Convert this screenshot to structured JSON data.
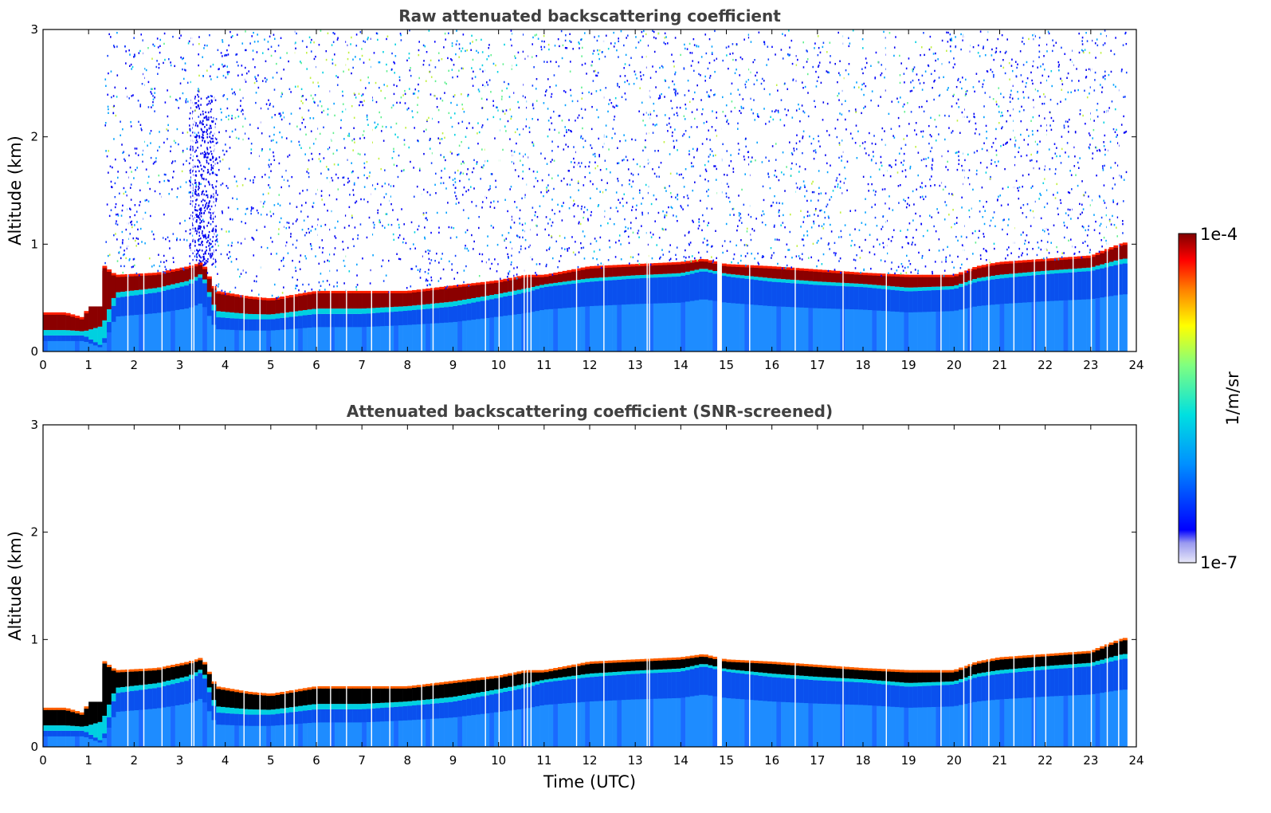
{
  "chart_data": [
    {
      "type": "heatmap",
      "title": "Raw attenuated backscattering coefficient",
      "xlabel": "",
      "ylabel": "Altitude (km)",
      "xlim": [
        0,
        24
      ],
      "ylim": [
        0,
        3
      ],
      "xticks": [
        "0",
        "1",
        "2",
        "3",
        "4",
        "5",
        "6",
        "7",
        "8",
        "9",
        "10",
        "11",
        "12",
        "13",
        "14",
        "15",
        "16",
        "17",
        "18",
        "19",
        "20",
        "21",
        "22",
        "23",
        "24"
      ],
      "yticks": [
        "0",
        "1",
        "2",
        "3"
      ],
      "layer_top_km": {
        "x": [
          0,
          0.5,
          0.9,
          1.3,
          1.6,
          2.5,
          3.2,
          3.5,
          3.8,
          4.5,
          5,
          6,
          7,
          8,
          9,
          10,
          10.6,
          11,
          12,
          13,
          14,
          14.5,
          15,
          16,
          17,
          18,
          19,
          20,
          20.5,
          21,
          22,
          23,
          23.7
        ],
        "y": [
          0.35,
          0.35,
          0.3,
          0.8,
          0.7,
          0.72,
          0.78,
          0.82,
          0.55,
          0.5,
          0.48,
          0.55,
          0.55,
          0.55,
          0.6,
          0.65,
          0.7,
          0.7,
          0.78,
          0.8,
          0.82,
          0.85,
          0.8,
          0.78,
          0.75,
          0.72,
          0.7,
          0.7,
          0.78,
          0.82,
          0.85,
          0.88,
          1.0
        ]
      },
      "layer_bottom_km": {
        "x": [
          0,
          0.5,
          0.9,
          1.3,
          1.6,
          2.5,
          3.2,
          3.5,
          3.8,
          4.5,
          5,
          6,
          7,
          8,
          9,
          10,
          10.6,
          11,
          12,
          13,
          14,
          14.5,
          15,
          16,
          17,
          18,
          19,
          20,
          20.5,
          21,
          22,
          23,
          23.7
        ],
        "y": [
          0.15,
          0.15,
          0.15,
          0.05,
          0.5,
          0.55,
          0.62,
          0.7,
          0.32,
          0.3,
          0.3,
          0.35,
          0.35,
          0.38,
          0.42,
          0.5,
          0.55,
          0.6,
          0.65,
          0.68,
          0.7,
          0.75,
          0.7,
          0.65,
          0.62,
          0.6,
          0.56,
          0.58,
          0.65,
          0.68,
          0.72,
          0.75,
          0.82
        ]
      },
      "colorbar": {
        "min_label": "1e-7",
        "max_label": "1e-4",
        "label": "1/m/sr"
      }
    },
    {
      "type": "heatmap",
      "title": "Attenuated backscattering coefficient (SNR-screened)",
      "xlabel": "Time (UTC)",
      "ylabel": "Altitude (km)",
      "xlim": [
        0,
        24
      ],
      "ylim": [
        0,
        3
      ],
      "xticks": [
        "0",
        "1",
        "2",
        "3",
        "4",
        "5",
        "6",
        "7",
        "8",
        "9",
        "10",
        "11",
        "12",
        "13",
        "14",
        "15",
        "16",
        "17",
        "18",
        "19",
        "20",
        "21",
        "22",
        "23",
        "24"
      ],
      "yticks": [
        "0",
        "1",
        "2",
        "3"
      ],
      "masked_above_layer": true
    }
  ],
  "colors": {
    "jet_stops": [
      "#e8e8f8",
      "#0000ff",
      "#00a0ff",
      "#00e0e0",
      "#80ff80",
      "#ffff00",
      "#ff8000",
      "#ff0000",
      "#800000"
    ],
    "screened_peak": "#000000"
  }
}
